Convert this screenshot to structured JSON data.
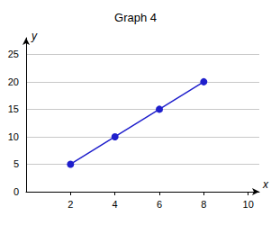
{
  "chart_data": {
    "type": "line",
    "title": "Graph 4",
    "x_label": "x",
    "y_label": "y",
    "x": [
      2,
      4,
      6,
      8
    ],
    "values": [
      5,
      10,
      15,
      20
    ],
    "color": "#1f1fcc",
    "marker": "circle",
    "xlim": [
      0,
      10.5
    ],
    "xticks": [
      2,
      4,
      6,
      8,
      10
    ],
    "ylim": [
      0,
      28
    ],
    "yticks": [
      0,
      5,
      10,
      15,
      20,
      25
    ],
    "grid": true
  }
}
